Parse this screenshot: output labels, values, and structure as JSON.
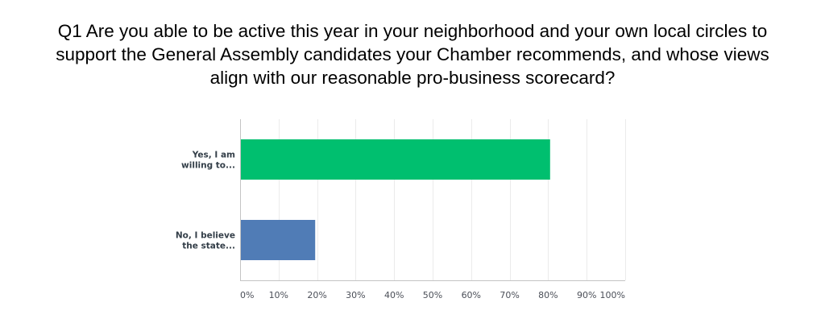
{
  "title_lines": [
    "Q1 Are you able to be active this year in your neighborhood and your own local circles to",
    "support the General Assembly candidates your Chamber recommends, and whose views",
    "align with our reasonable pro-business scorecard?"
  ],
  "chart_data": {
    "type": "bar",
    "orientation": "horizontal",
    "title": "Q1 Are you able to be active this year in your neighborhood and your own local circles to support the General Assembly candidates your Chamber recommends, and whose views align with our reasonable pro-business scorecard?",
    "categories": [
      [
        "Yes, I am",
        "willing to..."
      ],
      [
        "No, I believe",
        "the state..."
      ]
    ],
    "values": [
      80.5,
      19.5
    ],
    "colors": [
      "#00bf6f",
      "#507cb6"
    ],
    "xlim": [
      0,
      100
    ],
    "xticks": [
      "0%",
      "10%",
      "20%",
      "30%",
      "40%",
      "50%",
      "60%",
      "70%",
      "80%",
      "90%",
      "100%"
    ],
    "grid": true,
    "xlabel": "",
    "ylabel": ""
  }
}
